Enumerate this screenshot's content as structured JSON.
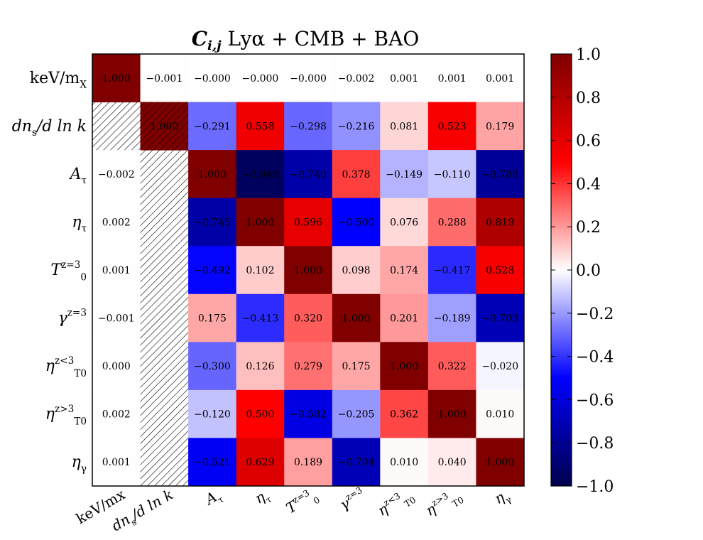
{
  "chart_data": {
    "type": "heatmap",
    "title_main": "C",
    "title_sub": "i,j",
    "title_rest": " Lyα  +  CMB  +  BAO",
    "row_labels": [
      {
        "base": "keV/m",
        "sub": "X",
        "sup": ""
      },
      {
        "base": "dn",
        "sub": "s",
        "sup": "",
        "suffix": "/d ln k"
      },
      {
        "base": "A",
        "sub": "τ",
        "sup": ""
      },
      {
        "base": "η",
        "sub": "τ",
        "sup": ""
      },
      {
        "base": "T",
        "sub": "0",
        "sup": "z=3"
      },
      {
        "base": "γ",
        "sub": "",
        "sup": "z=3"
      },
      {
        "base": "η",
        "sub": "T0",
        "sup": "z<3"
      },
      {
        "base": "η",
        "sub": "T0",
        "sup": "z>3"
      },
      {
        "base": "η",
        "sub": "γ",
        "sup": ""
      }
    ],
    "col_labels": [
      {
        "base": "keV/mx",
        "sub": "",
        "sup": ""
      },
      {
        "base": "dn",
        "sub": "s",
        "sup": "",
        "suffix": "/d ln k"
      },
      {
        "base": "A",
        "sub": "τ",
        "sup": ""
      },
      {
        "base": "η",
        "sub": "τ",
        "sup": ""
      },
      {
        "base": "T",
        "sub": "0",
        "sup": "z=3"
      },
      {
        "base": "γ",
        "sub": "",
        "sup": "z=3"
      },
      {
        "base": "η",
        "sub": "T0",
        "sup": "z<3"
      },
      {
        "base": "η",
        "sub": "T0",
        "sup": "z>3"
      },
      {
        "base": "η",
        "sub": "γ",
        "sup": ""
      }
    ],
    "matrix": [
      [
        1.0,
        -0.001,
        -0.0,
        -0.0,
        -0.0,
        -0.002,
        0.001,
        0.001,
        0.001
      ],
      [
        null,
        1.0,
        -0.291,
        0.558,
        -0.298,
        -0.216,
        0.081,
        0.523,
        0.179
      ],
      [
        -0.002,
        null,
        1.0,
        -0.948,
        -0.74,
        0.378,
        -0.149,
        -0.11,
        -0.788
      ],
      [
        0.002,
        null,
        -0.745,
        1.0,
        0.596,
        -0.5,
        0.076,
        0.288,
        0.819
      ],
      [
        0.001,
        null,
        -0.492,
        0.102,
        1.0,
        0.098,
        0.174,
        -0.417,
        0.528
      ],
      [
        -0.001,
        null,
        0.175,
        -0.413,
        0.32,
        1.0,
        0.201,
        -0.189,
        -0.703
      ],
      [
        0.0,
        null,
        -0.3,
        0.126,
        0.279,
        0.175,
        1.0,
        0.322,
        -0.02
      ],
      [
        0.002,
        null,
        -0.12,
        0.5,
        -0.582,
        -0.205,
        0.362,
        1.0,
        0.01
      ],
      [
        0.001,
        null,
        -0.521,
        0.629,
        0.189,
        -0.704,
        0.01,
        0.04,
        1.0
      ]
    ],
    "display": [
      [
        "1.000",
        "−0.001",
        "−0.000",
        "−0.000",
        "−0.000",
        "−0.002",
        "0.001",
        "0.001",
        "0.001"
      ],
      [
        "",
        "1.000",
        "−0.291",
        "0.558",
        "−0.298",
        "−0.216",
        "0.081",
        "0.523",
        "0.179"
      ],
      [
        "−0.002",
        "",
        "1.000",
        "−0.948",
        "−0.740",
        "0.378",
        "−0.149",
        "−0.110",
        "−0.788"
      ],
      [
        "0.002",
        "",
        "−0.745",
        "1.000",
        "0.596",
        "−0.500",
        "0.076",
        "0.288",
        "0.819"
      ],
      [
        "0.001",
        "",
        "−0.492",
        "0.102",
        "1.000",
        "0.098",
        "0.174",
        "−0.417",
        "0.528"
      ],
      [
        "−0.001",
        "",
        "0.175",
        "−0.413",
        "0.320",
        "1.000",
        "0.201",
        "−0.189",
        "−0.703"
      ],
      [
        "0.000",
        "",
        "−0.300",
        "0.126",
        "0.279",
        "0.175",
        "1.000",
        "0.322",
        "−0.020"
      ],
      [
        "0.002",
        "",
        "−0.120",
        "0.500",
        "−0.582",
        "−0.205",
        "0.362",
        "1.000",
        "0.010"
      ],
      [
        "0.001",
        "",
        "−0.521",
        "0.629",
        "0.189",
        "−0.704",
        "0.010",
        "0.040",
        "1.000"
      ]
    ],
    "hatched_cells": [
      [
        1,
        0
      ],
      [
        1,
        1
      ],
      [
        2,
        1
      ],
      [
        3,
        1
      ],
      [
        4,
        1
      ],
      [
        5,
        1
      ],
      [
        6,
        1
      ],
      [
        7,
        1
      ],
      [
        8,
        1
      ]
    ],
    "colormap": "seismic",
    "vmin": -1.0,
    "vmax": 1.0,
    "colorbar_ticks": [
      1.0,
      0.8,
      0.6,
      0.4,
      0.2,
      0.0,
      -0.2,
      -0.4,
      -0.6,
      -0.8,
      -1.0
    ],
    "colorbar_tick_labels": [
      "1.0",
      "0.8",
      "0.6",
      "0.4",
      "0.2",
      "0.0",
      "−0.2",
      "−0.4",
      "−0.6",
      "−0.8",
      "−1.0"
    ]
  }
}
